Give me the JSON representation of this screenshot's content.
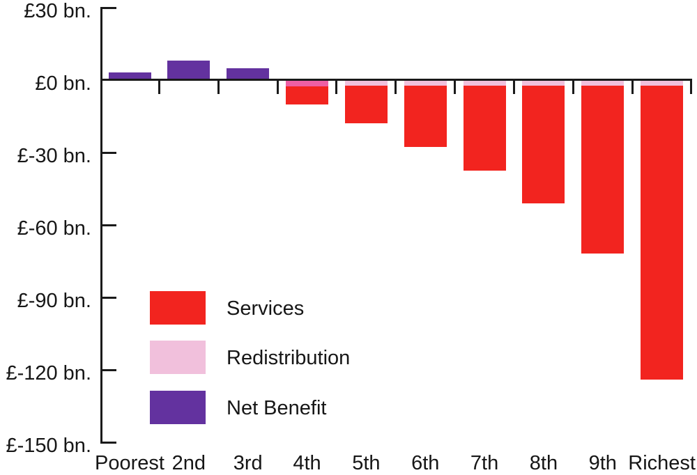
{
  "chart_data": {
    "type": "bar",
    "stacked": true,
    "title": "",
    "xlabel": "",
    "ylabel": "",
    "unit": "£ bn.",
    "categories": [
      "Poorest",
      "2nd",
      "3rd",
      "4th",
      "5th",
      "6th",
      "7th",
      "8th",
      "9th",
      "Richest"
    ],
    "y_axis": {
      "min": -150,
      "max": 30,
      "tick_values": [
        30,
        0,
        -30,
        -60,
        -90,
        -120,
        -150
      ],
      "tick_labels": [
        "£30 bn.",
        "£0 bn.",
        "£-30 bn.",
        "£-60 bn.",
        "£-90 bn.",
        "£-120 bn.",
        "£-150 bn."
      ],
      "grid": false
    },
    "series": [
      {
        "name": "Services",
        "color": "#f2241f",
        "values": [
          0,
          0,
          0,
          -7.4,
          -15.6,
          -25.3,
          -35.2,
          -48.8,
          -69.5,
          -121.6
        ]
      },
      {
        "name": "Redistribution",
        "color": "#f1c0dc",
        "values": [
          0,
          0,
          0,
          -2.6,
          -2.4,
          -2.4,
          -2.4,
          -2.4,
          -2.4,
          -2.4
        ]
      },
      {
        "name": "Net Benefit",
        "color": "#63329f",
        "values": [
          3.2,
          8.0,
          4.8,
          0,
          0,
          0,
          0,
          0,
          0,
          0
        ]
      }
    ],
    "stack_totals_negative": [
      0,
      0,
      0,
      -10.0,
      -18.0,
      -27.7,
      -37.6,
      -51.2,
      -71.9,
      -124.0
    ],
    "decile4_strip_color": "#ee5fa4",
    "axis_color": "#1a1a1a",
    "legend": {
      "position": "inside-lower-left",
      "entries": [
        "Services",
        "Redistribution",
        "Net Benefit"
      ]
    }
  }
}
